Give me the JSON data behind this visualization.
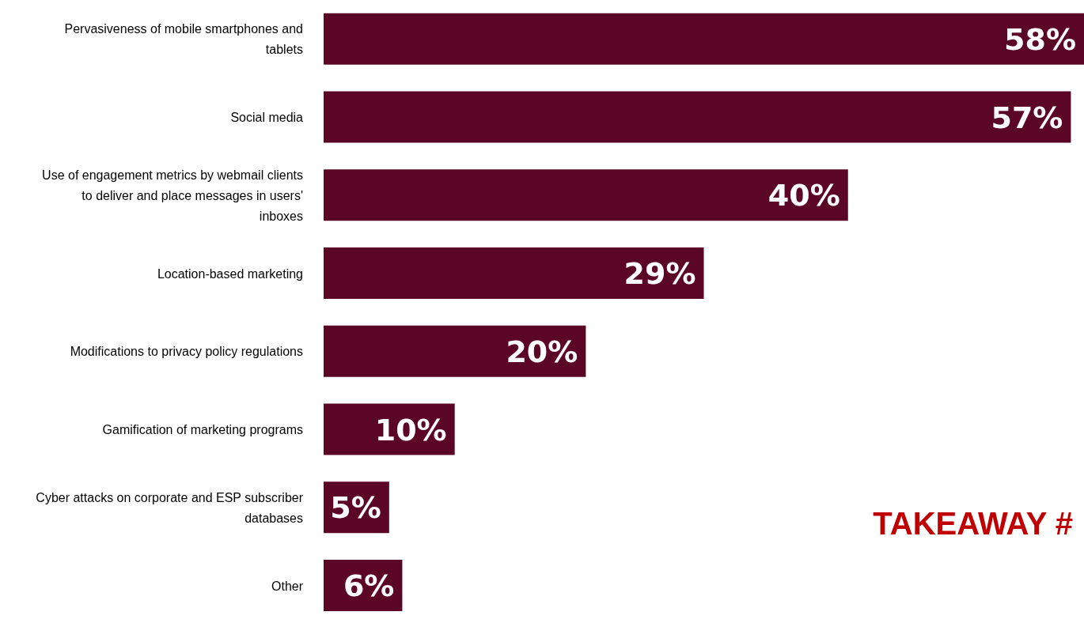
{
  "chart_data": {
    "type": "bar",
    "orientation": "horizontal",
    "categories": [
      "Pervasiveness of mobile smartphones and tablets",
      "Social media",
      "Use of engagement metrics by webmail clients to deliver and place messages in users' inboxes",
      "Location-based marketing",
      "Modifications to privacy policy regulations",
      "Gamification of marketing programs",
      "Cyber attacks on corporate and ESP subscriber databases",
      "Other"
    ],
    "values": [
      58,
      57,
      40,
      29,
      20,
      10,
      5,
      6
    ],
    "color": "#5c0626",
    "value_labels": [
      "58%",
      "57%",
      "40%",
      "29%",
      "20%",
      "10%",
      "5%",
      "6%"
    ],
    "annotations": [
      "TAKEAWAY #"
    ]
  }
}
